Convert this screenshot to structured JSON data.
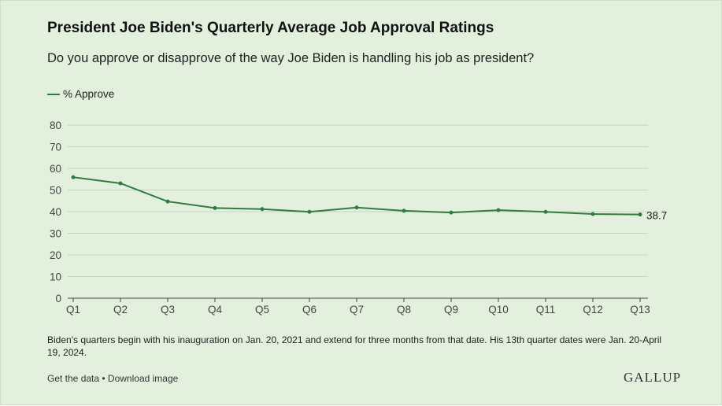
{
  "title": "President Joe Biden's Quarterly Average Job Approval Ratings",
  "subtitle": "Do you approve or disapprove of the way Joe Biden is handling his job as president?",
  "note": "Biden's quarters begin with his inauguration on Jan. 20, 2021 and extend for three months from that date. His 13th quarter dates were Jan. 20-April 19, 2024.",
  "links": {
    "get_data": "Get the data",
    "separator": " • ",
    "download": "Download image"
  },
  "logo": "GALLUP",
  "chart_data": {
    "type": "line",
    "categories": [
      "Q1",
      "Q2",
      "Q3",
      "Q4",
      "Q5",
      "Q6",
      "Q7",
      "Q8",
      "Q9",
      "Q10",
      "Q11",
      "Q12",
      "Q13"
    ],
    "series": [
      {
        "name": "% Approve",
        "color": "#2e7d42",
        "values": [
          55.9,
          53.1,
          44.7,
          41.7,
          41.2,
          39.9,
          41.9,
          40.4,
          39.6,
          40.7,
          39.9,
          38.9,
          38.7
        ]
      }
    ],
    "end_label": "38.7",
    "ylim": [
      0,
      80
    ],
    "yticks": [
      0,
      10,
      20,
      30,
      40,
      50,
      60,
      70,
      80
    ],
    "grid": true,
    "legend": "top-left"
  }
}
